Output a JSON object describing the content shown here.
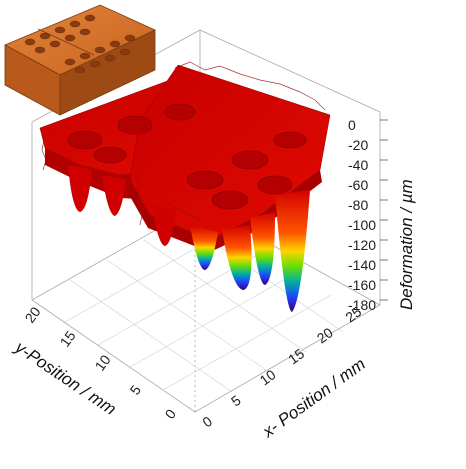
{
  "chart_data": {
    "type": "surface3d",
    "xlabel": "x- Position / mm",
    "ylabel": "y-Position / mm",
    "zlabel": "Deformation / µm",
    "x_ticks": [
      0,
      5,
      10,
      15,
      20,
      25
    ],
    "y_ticks": [
      0,
      5,
      10,
      15,
      20
    ],
    "z_ticks": [
      0,
      -20,
      -40,
      -60,
      -80,
      -100,
      -120,
      -140,
      -160,
      -180
    ],
    "xlim": [
      0,
      25
    ],
    "ylim": [
      0,
      20
    ],
    "zlim": [
      -180,
      0
    ],
    "base_deformation": -20,
    "colormap": [
      "#d40000",
      "#ff8c00",
      "#ffd700",
      "#7cfc00",
      "#00bfa0",
      "#1e3cff",
      "#3a0078"
    ],
    "dips": [
      {
        "x": 3.5,
        "y": 4,
        "min_deformation": -70
      },
      {
        "x": 3.5,
        "y": 9,
        "min_deformation": -65
      },
      {
        "x": 3.5,
        "y": 14,
        "min_deformation": -70
      },
      {
        "x": 10,
        "y": 4,
        "min_deformation": -100
      },
      {
        "x": 15,
        "y": 3,
        "min_deformation": -130
      },
      {
        "x": 19,
        "y": 2.5,
        "min_deformation": -150
      },
      {
        "x": 23,
        "y": 2,
        "min_deformation": -175
      },
      {
        "x": 12,
        "y": 10,
        "min_deformation": -90
      }
    ],
    "inset": {
      "type": "block-rendering",
      "color": "#c8641e",
      "holes": 18
    }
  }
}
